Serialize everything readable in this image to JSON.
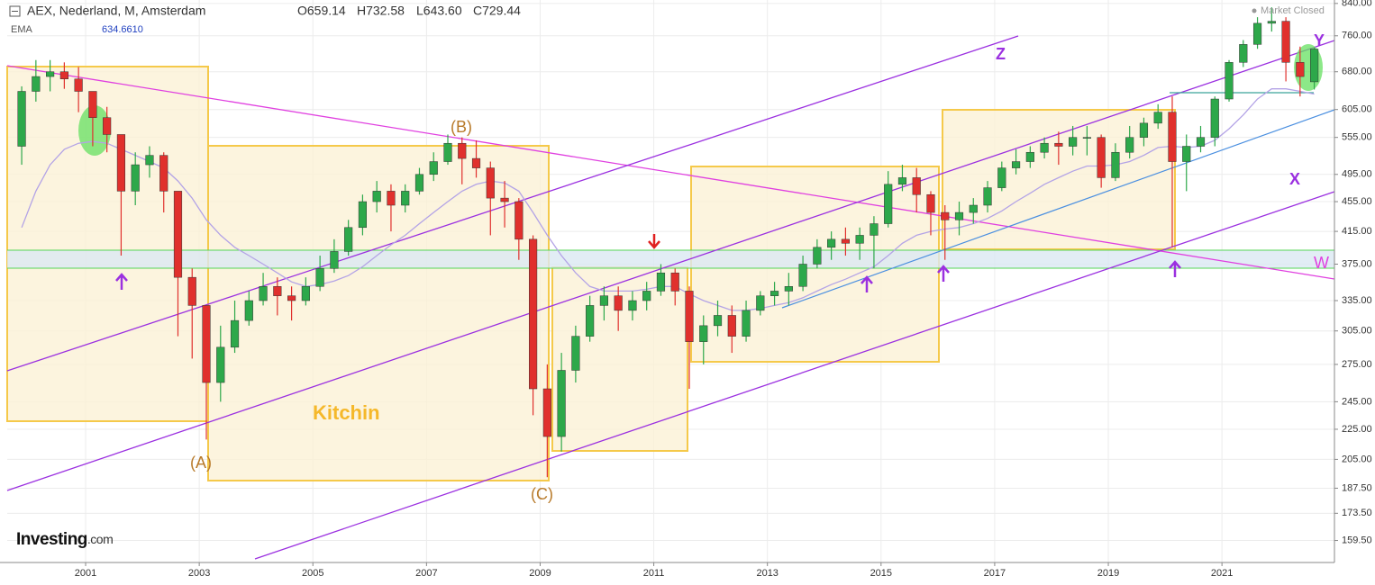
{
  "chart_data": {
    "type": "candlestick",
    "title": "AEX, Nederland, M, Amsterdam",
    "ohlc_labels": [
      "O659.14",
      "H732.58",
      "L643.60",
      "C729.44"
    ],
    "status": "Market Closed",
    "watermark": [
      "Investing",
      ".com"
    ],
    "annotations": [
      "Z",
      "Y",
      "X",
      "W",
      "(A)",
      "(B)",
      "(C)",
      "Kitchin"
    ],
    "log_scale": true,
    "grid": true,
    "up_color": "#2da84a",
    "down_color": "#e0302d",
    "xlim": [
      1999.62,
      2022.98
    ],
    "xticks": [
      2001,
      2003,
      2005,
      2007,
      2009,
      2011,
      2013,
      2015,
      2017,
      2019,
      2021
    ],
    "ylim": [
      149,
      849
    ],
    "yticks": [
      {
        "value": 159.5,
        "label": "159.50"
      },
      {
        "value": 173.5,
        "label": "173.50"
      },
      {
        "value": 187.5,
        "label": "187.50"
      },
      {
        "value": 205,
        "label": "205.00"
      },
      {
        "value": 225,
        "label": "225.00"
      },
      {
        "value": 245,
        "label": "245.00"
      },
      {
        "value": 275,
        "label": "275.00"
      },
      {
        "value": 305,
        "label": "305.00"
      },
      {
        "value": 335,
        "label": "335.00"
      },
      {
        "value": 375,
        "label": "375.00"
      },
      {
        "value": 415,
        "label": "415.00"
      },
      {
        "value": 455,
        "label": "455.00"
      },
      {
        "value": 495,
        "label": "495.00"
      },
      {
        "value": 555,
        "label": "555.00"
      },
      {
        "value": 605,
        "label": "605.00"
      },
      {
        "value": 680,
        "label": "680.00"
      },
      {
        "value": 760,
        "label": "760.00"
      },
      {
        "value": 840,
        "label": "840.00"
      }
    ],
    "x": [
      1999.875,
      2000.125,
      2000.375,
      2000.625,
      2000.875,
      2001.125,
      2001.375,
      2001.625,
      2001.875,
      2002.125,
      2002.375,
      2002.625,
      2002.875,
      2003.125,
      2003.375,
      2003.625,
      2003.875,
      2004.125,
      2004.375,
      2004.625,
      2004.875,
      2005.125,
      2005.375,
      2005.625,
      2005.875,
      2006.125,
      2006.375,
      2006.625,
      2006.875,
      2007.125,
      2007.375,
      2007.625,
      2007.875,
      2008.125,
      2008.375,
      2008.625,
      2008.875,
      2009.125,
      2009.375,
      2009.625,
      2009.875,
      2010.125,
      2010.375,
      2010.625,
      2010.875,
      2011.125,
      2011.375,
      2011.625,
      2011.875,
      2012.125,
      2012.375,
      2012.625,
      2012.875,
      2013.125,
      2013.375,
      2013.625,
      2013.875,
      2014.125,
      2014.375,
      2014.625,
      2014.875,
      2015.125,
      2015.375,
      2015.625,
      2015.875,
      2016.125,
      2016.375,
      2016.625,
      2016.875,
      2017.125,
      2017.375,
      2017.625,
      2017.875,
      2018.125,
      2018.375,
      2018.625,
      2018.875,
      2019.125,
      2019.375,
      2019.625,
      2019.875,
      2020.125,
      2020.375,
      2020.625,
      2020.875,
      2021.125,
      2021.375,
      2021.625,
      2021.875,
      2022.125,
      2022.375,
      2022.625
    ],
    "series": [
      {
        "open": [
          540,
          640,
          670,
          680,
          665,
          640,
          590,
          560,
          470,
          510,
          525,
          470,
          360,
          330,
          260,
          290,
          315,
          335,
          350,
          340,
          335,
          350,
          370,
          390,
          420,
          455,
          470,
          450,
          470,
          495,
          515,
          545,
          520,
          505,
          460,
          455,
          405,
          255,
          220,
          270,
          300,
          330,
          340,
          325,
          335,
          345,
          365,
          345,
          295,
          310,
          320,
          300,
          325,
          340,
          345,
          350,
          375,
          395,
          405,
          400,
          410,
          425,
          480,
          490,
          465,
          440,
          430,
          440,
          450,
          475,
          505,
          515,
          530,
          545,
          540,
          555,
          555,
          490,
          530,
          555,
          580,
          600,
          515,
          540,
          555,
          625,
          700,
          740,
          790,
          795,
          700,
          659.14
        ],
        "high": [
          650,
          705,
          705,
          700,
          690,
          640,
          610,
          560,
          530,
          540,
          530,
          470,
          370,
          330,
          310,
          335,
          345,
          365,
          360,
          350,
          360,
          385,
          405,
          430,
          465,
          485,
          480,
          480,
          505,
          530,
          560,
          555,
          550,
          515,
          485,
          460,
          410,
          275,
          285,
          310,
          340,
          350,
          350,
          345,
          355,
          375,
          370,
          350,
          320,
          335,
          330,
          335,
          345,
          355,
          365,
          385,
          405,
          415,
          420,
          420,
          435,
          500,
          510,
          505,
          470,
          450,
          455,
          460,
          485,
          515,
          535,
          540,
          555,
          565,
          575,
          575,
          560,
          545,
          575,
          590,
          615,
          630,
          560,
          575,
          630,
          705,
          750,
          805,
          830,
          805,
          735,
          732.58
        ],
        "low": [
          510,
          620,
          640,
          645,
          600,
          540,
          530,
          385,
          450,
          490,
          440,
          300,
          280,
          218,
          245,
          285,
          310,
          330,
          320,
          315,
          330,
          345,
          365,
          385,
          410,
          440,
          415,
          440,
          465,
          485,
          510,
          480,
          490,
          410,
          420,
          380,
          235,
          194,
          210,
          260,
          295,
          315,
          305,
          315,
          325,
          340,
          330,
          255,
          275,
          300,
          285,
          295,
          320,
          330,
          330,
          345,
          370,
          380,
          385,
          380,
          370,
          420,
          470,
          440,
          410,
          380,
          410,
          425,
          440,
          470,
          495,
          505,
          520,
          510,
          525,
          525,
          475,
          485,
          520,
          540,
          570,
          395,
          470,
          530,
          540,
          620,
          690,
          730,
          770,
          660,
          630,
          643.6
        ],
        "close": [
          640,
          670,
          680,
          665,
          640,
          590,
          560,
          470,
          510,
          525,
          470,
          360,
          330,
          260,
          290,
          315,
          335,
          350,
          340,
          335,
          350,
          370,
          390,
          420,
          455,
          470,
          450,
          470,
          495,
          515,
          545,
          520,
          505,
          460,
          455,
          405,
          255,
          220,
          270,
          300,
          330,
          340,
          325,
          335,
          345,
          365,
          345,
          295,
          310,
          320,
          300,
          325,
          340,
          345,
          350,
          375,
          395,
          405,
          400,
          410,
          425,
          480,
          490,
          465,
          440,
          430,
          440,
          450,
          475,
          505,
          515,
          530,
          545,
          540,
          555,
          555,
          490,
          530,
          555,
          580,
          600,
          515,
          540,
          555,
          625,
          700,
          740,
          790,
          795,
          700,
          670,
          729.44
        ]
      }
    ],
    "indicator": {
      "name": "EMA",
      "value_label": "634.6610",
      "color": "#b3a3e6",
      "values": [
        420,
        470,
        510,
        535,
        545,
        548,
        545,
        535,
        525,
        515,
        505,
        485,
        460,
        430,
        410,
        395,
        385,
        375,
        365,
        355,
        350,
        352,
        356,
        362,
        372,
        385,
        398,
        410,
        425,
        440,
        455,
        470,
        480,
        485,
        482,
        470,
        440,
        410,
        385,
        365,
        350,
        345,
        345,
        345,
        347,
        350,
        350,
        342,
        335,
        330,
        325,
        325,
        327,
        330,
        333,
        338,
        345,
        352,
        358,
        365,
        372,
        385,
        400,
        410,
        415,
        418,
        420,
        425,
        432,
        442,
        455,
        467,
        480,
        490,
        500,
        508,
        508,
        510,
        515,
        525,
        538,
        540,
        538,
        540,
        550,
        570,
        595,
        625,
        645,
        645,
        640,
        634.661
      ]
    }
  }
}
